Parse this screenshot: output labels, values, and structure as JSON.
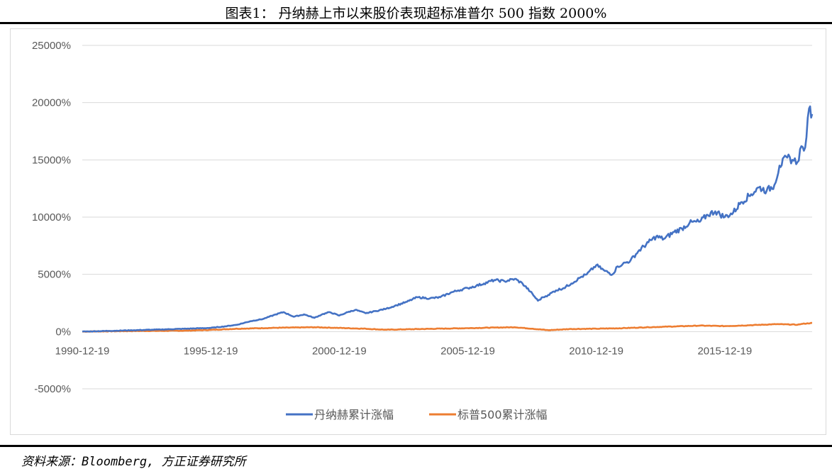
{
  "header": {
    "title": "图表1：   丹纳赫上市以来股价表现超标准普尔 500 指数 2000%"
  },
  "footer": {
    "source": "资料来源：Bloomberg, 方正证券研究所"
  },
  "colors": {
    "danaher": "#4472c4",
    "sp500": "#ed7d31",
    "grid": "#d9d9d9",
    "tick": "#595959"
  },
  "chart_data": {
    "type": "line",
    "title": "",
    "xlabel": "",
    "ylabel": "",
    "ylim": [
      -5000,
      25000
    ],
    "y_ticks": [
      25000,
      20000,
      15000,
      10000,
      5000,
      0,
      -5000
    ],
    "y_tick_labels": [
      "25000%",
      "20000%",
      "15000%",
      "10000%",
      "5000%",
      "0%",
      "-5000%"
    ],
    "x_tick_labels": [
      "1990-12-19",
      "1995-12-19",
      "2000-12-19",
      "2005-12-19",
      "2010-12-19",
      "2015-12-19"
    ],
    "x_tick_values": [
      1990.97,
      1995.97,
      2000.97,
      2005.97,
      2010.97,
      2015.97
    ],
    "xlim": [
      1990.97,
      2019.37
    ],
    "grid": true,
    "legend_position": "bottom",
    "series": [
      {
        "name": "丹纳赫累计涨幅",
        "color": "#4472c4",
        "x": [
          1990.97,
          1992.0,
          1993.0,
          1994.0,
          1995.0,
          1995.97,
          1996.5,
          1997.0,
          1997.5,
          1998.0,
          1998.5,
          1998.8,
          1999.2,
          1999.6,
          2000.0,
          2000.3,
          2000.6,
          2000.97,
          2001.3,
          2001.6,
          2002.0,
          2002.4,
          2002.8,
          2003.2,
          2003.6,
          2004.0,
          2004.5,
          2004.9,
          2005.3,
          2005.6,
          2005.97,
          2006.3,
          2006.6,
          2007.0,
          2007.4,
          2007.8,
          2008.1,
          2008.4,
          2008.7,
          2008.9,
          2009.1,
          2009.4,
          2009.7,
          2010.0,
          2010.4,
          2010.6,
          2010.97,
          2011.3,
          2011.6,
          2011.8,
          2012.0,
          2012.3,
          2012.6,
          2013.0,
          2013.3,
          2013.6,
          2014.0,
          2014.3,
          2014.6,
          2015.0,
          2015.3,
          2015.6,
          2015.97,
          2016.3,
          2016.6,
          2017.0,
          2017.3,
          2017.6,
          2017.9,
          2018.1,
          2018.4,
          2018.6,
          2018.8,
          2018.95,
          2019.05,
          2019.15,
          2019.25,
          2019.37
        ],
        "values": [
          0,
          60,
          120,
          180,
          250,
          320,
          450,
          600,
          900,
          1100,
          1500,
          1700,
          1300,
          1500,
          1200,
          1500,
          1700,
          1400,
          1700,
          1900,
          1600,
          1800,
          2000,
          2300,
          2600,
          3000,
          2900,
          3000,
          3400,
          3600,
          3800,
          4000,
          4200,
          4500,
          4400,
          4600,
          4200,
          3500,
          2700,
          3000,
          3200,
          3600,
          3800,
          4200,
          4800,
          5000,
          5800,
          5300,
          5000,
          5700,
          5900,
          6200,
          7000,
          7800,
          8300,
          8100,
          8700,
          9000,
          9500,
          9600,
          10200,
          10500,
          10000,
          10400,
          11300,
          12000,
          12600,
          12300,
          12800,
          14500,
          15200,
          15000,
          14800,
          16200,
          15800,
          17000,
          19500,
          19000
        ]
      },
      {
        "name": "标普500累计涨幅",
        "color": "#ed7d31",
        "x": [
          1990.97,
          1993.0,
          1995.0,
          1995.97,
          1997.0,
          1998.5,
          2000.0,
          2000.97,
          2002.0,
          2002.8,
          2004.0,
          2005.97,
          2007.0,
          2007.8,
          2008.5,
          2009.1,
          2010.0,
          2010.97,
          2012.0,
          2013.0,
          2014.0,
          2015.0,
          2015.97,
          2017.0,
          2018.0,
          2018.8,
          2019.0,
          2019.37
        ],
        "values": [
          0,
          50,
          80,
          150,
          250,
          330,
          380,
          320,
          250,
          160,
          220,
          300,
          350,
          380,
          250,
          120,
          230,
          250,
          300,
          380,
          450,
          520,
          480,
          560,
          650,
          600,
          680,
          750
        ]
      }
    ]
  }
}
